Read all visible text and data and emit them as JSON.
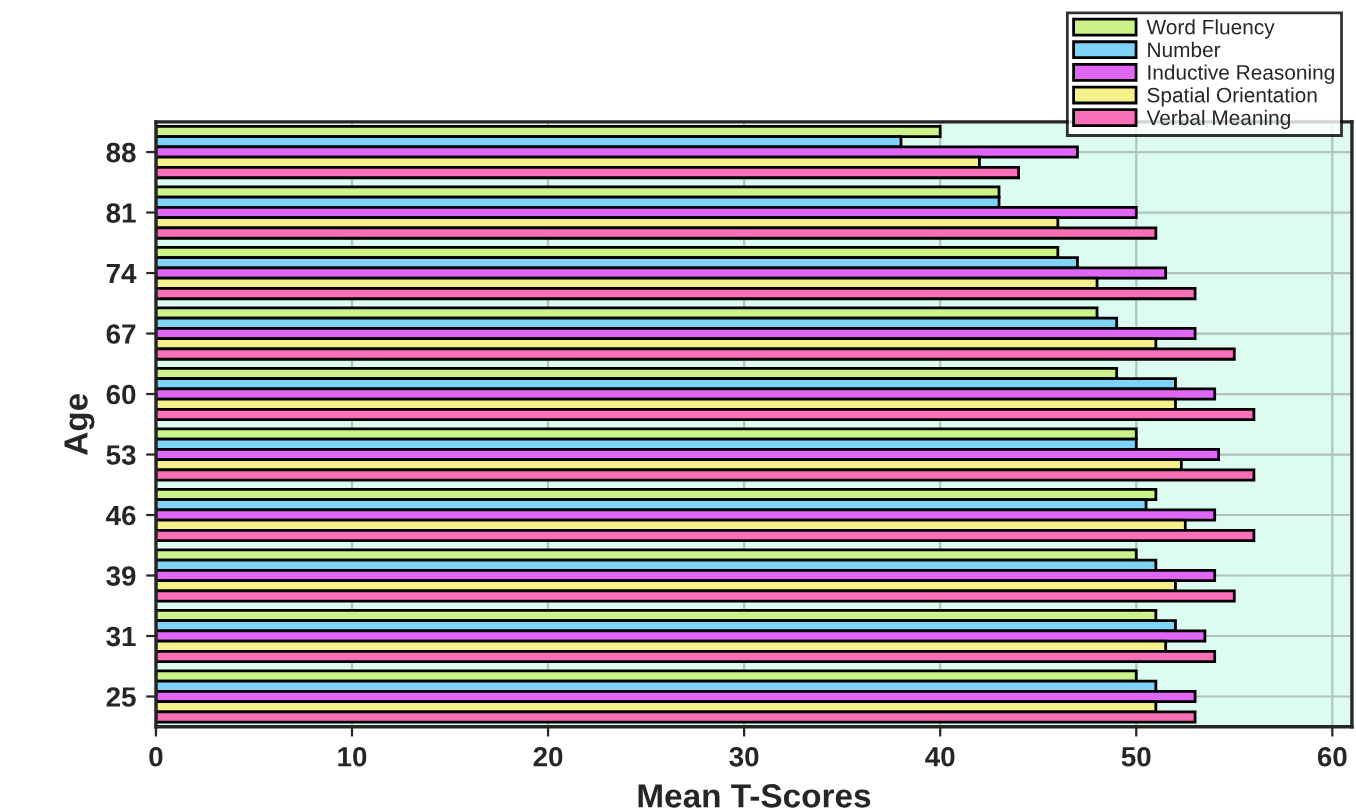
{
  "chart_data": {
    "type": "bar",
    "orientation": "horizontal",
    "xlabel": "Mean T-Scores",
    "ylabel": "Age",
    "categories": [
      "88",
      "81",
      "74",
      "67",
      "60",
      "53",
      "46",
      "39",
      "31",
      "25"
    ],
    "series": [
      {
        "name": "Word Fluency",
        "color": "#ccf28a",
        "values": [
          40,
          43,
          46,
          48,
          49,
          50,
          51,
          50,
          51,
          50
        ]
      },
      {
        "name": "Number",
        "color": "#7fd3f7",
        "values": [
          38,
          43,
          47,
          49,
          52,
          50,
          50.5,
          51,
          52,
          51
        ]
      },
      {
        "name": "Inductive Reasoning",
        "color": "#e066f5",
        "values": [
          47,
          50,
          51.5,
          53,
          54,
          54.2,
          54,
          54,
          53.5,
          53
        ]
      },
      {
        "name": "Spatial Orientation",
        "color": "#f5f08a",
        "values": [
          42,
          46,
          48,
          51,
          52,
          52.3,
          52.5,
          52,
          51.5,
          51
        ]
      },
      {
        "name": "Verbal Meaning",
        "color": "#f96fb8",
        "values": [
          44,
          51,
          53,
          55,
          56,
          56,
          56,
          55,
          54,
          53
        ]
      }
    ],
    "xlim": [
      0,
      61
    ],
    "xticks": [
      0,
      10,
      20,
      30,
      40,
      50,
      60
    ],
    "grid": true,
    "legend": "top right"
  }
}
